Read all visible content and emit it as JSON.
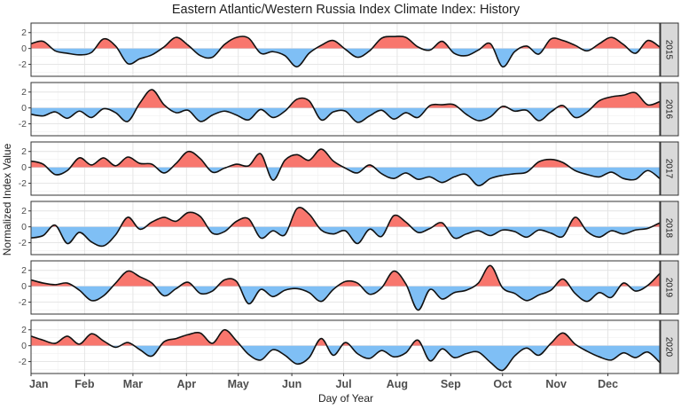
{
  "chart_data": {
    "type": "area",
    "title": "Eastern Atlantic/Western Russia Index Climate Index: History",
    "xlabel": "Day of Year",
    "ylabel": "Normalized Index Value",
    "xlim": [
      1,
      365
    ],
    "ylim": [
      -3.5,
      3.2
    ],
    "yticks": [
      -2,
      0,
      2
    ],
    "x_ticks": [
      {
        "label": "Jan",
        "day": 1
      },
      {
        "label": "Feb",
        "day": 32
      },
      {
        "label": "Mar",
        "day": 60
      },
      {
        "label": "Apr",
        "day": 91
      },
      {
        "label": "May",
        "day": 121
      },
      {
        "label": "Jun",
        "day": 152
      },
      {
        "label": "Jul",
        "day": 182
      },
      {
        "label": "Aug",
        "day": 213
      },
      {
        "label": "Sep",
        "day": 244
      },
      {
        "label": "Oct",
        "day": 274
      },
      {
        "label": "Nov",
        "day": 305
      },
      {
        "label": "Dec",
        "day": 335
      }
    ],
    "grid": true,
    "fill_positive_color": "#f8766d",
    "fill_negative_color": "#7fbff5",
    "line_color": "#111111",
    "panels": [
      {
        "label": "2015",
        "x": [
          1,
          8,
          15,
          22,
          29,
          36,
          43,
          50,
          57,
          64,
          71,
          78,
          85,
          92,
          99,
          106,
          113,
          120,
          127,
          134,
          141,
          148,
          155,
          162,
          169,
          176,
          183,
          190,
          197,
          204,
          211,
          218,
          225,
          232,
          239,
          246,
          253,
          260,
          267,
          274,
          281,
          288,
          295,
          302,
          309,
          316,
          323,
          330,
          337,
          344,
          351,
          358,
          365
        ],
        "y": [
          0.6,
          0.9,
          -0.3,
          -0.6,
          -0.8,
          -0.5,
          1.2,
          0.3,
          -1.9,
          -1.3,
          -0.8,
          0.2,
          1.4,
          0.4,
          -0.9,
          -1.1,
          0.5,
          1.4,
          1.3,
          -0.6,
          -0.4,
          -0.9,
          -2.3,
          -0.6,
          0.4,
          1.0,
          -0.1,
          -1.1,
          -0.3,
          1.3,
          1.5,
          1.4,
          0.2,
          -0.2,
          0.9,
          -0.6,
          -0.9,
          -0.2,
          0.6,
          -2.3,
          -0.4,
          0.3,
          -0.7,
          1.2,
          1.0,
          0.4,
          -0.3,
          0.6,
          1.4,
          0.5,
          -0.6,
          1.0,
          0.2
        ]
      },
      {
        "label": "2016",
        "x": [
          1,
          8,
          15,
          22,
          29,
          36,
          43,
          50,
          57,
          64,
          71,
          78,
          85,
          92,
          99,
          106,
          113,
          120,
          127,
          134,
          141,
          148,
          155,
          162,
          169,
          176,
          183,
          190,
          197,
          204,
          211,
          218,
          225,
          232,
          239,
          246,
          253,
          260,
          267,
          274,
          281,
          288,
          295,
          302,
          309,
          316,
          323,
          330,
          337,
          344,
          351,
          358,
          365
        ],
        "y": [
          -0.8,
          -1.0,
          -0.5,
          -1.3,
          -0.4,
          -1.2,
          -0.1,
          -0.6,
          -1.7,
          0.6,
          2.3,
          0.4,
          -0.6,
          -0.3,
          -1.7,
          -0.9,
          -0.4,
          -0.9,
          -1.5,
          -0.2,
          -1.2,
          -0.4,
          1.1,
          0.9,
          -1.5,
          -0.5,
          -0.4,
          -1.8,
          -1.0,
          -0.3,
          -1.4,
          -0.6,
          -1.2,
          0.3,
          0.4,
          0.4,
          -0.8,
          -1.6,
          -1.1,
          0.2,
          -0.4,
          -0.3,
          -1.6,
          -0.5,
          0.3,
          -1.2,
          -0.5,
          0.9,
          1.4,
          1.6,
          1.9,
          0.4,
          0.8
        ]
      },
      {
        "label": "2017",
        "x": [
          1,
          8,
          15,
          22,
          29,
          36,
          43,
          50,
          57,
          64,
          71,
          78,
          85,
          92,
          99,
          106,
          113,
          120,
          127,
          134,
          141,
          148,
          155,
          162,
          169,
          176,
          183,
          190,
          197,
          204,
          211,
          218,
          225,
          232,
          239,
          246,
          253,
          260,
          267,
          274,
          281,
          288,
          295,
          302,
          309,
          316,
          323,
          330,
          337,
          344,
          351,
          358,
          365
        ],
        "y": [
          0.8,
          0.4,
          -0.9,
          -0.4,
          1.2,
          0.3,
          1.2,
          0.2,
          1.3,
          0.5,
          0.4,
          -0.7,
          0.5,
          2.0,
          1.1,
          -0.6,
          -0.1,
          0.4,
          0.2,
          1.7,
          -1.6,
          0.9,
          1.6,
          0.9,
          2.3,
          0.8,
          -0.1,
          -0.7,
          0.3,
          -0.8,
          -1.4,
          -0.7,
          -1.5,
          -1.2,
          -1.9,
          -1.2,
          -0.9,
          -2.3,
          -1.4,
          -1.0,
          -0.8,
          -0.6,
          0.7,
          1.0,
          0.6,
          -0.4,
          -0.9,
          -1.2,
          -0.6,
          -1.4,
          -1.5,
          -0.4,
          -1.4
        ]
      },
      {
        "label": "2018",
        "x": [
          1,
          8,
          15,
          22,
          29,
          36,
          43,
          50,
          57,
          64,
          71,
          78,
          85,
          92,
          99,
          106,
          113,
          120,
          127,
          134,
          141,
          148,
          155,
          162,
          169,
          176,
          183,
          190,
          197,
          204,
          211,
          218,
          225,
          232,
          239,
          246,
          253,
          260,
          267,
          274,
          281,
          288,
          295,
          302,
          309,
          316,
          323,
          330,
          337,
          344,
          351,
          358,
          365
        ],
        "y": [
          -1.4,
          -1.1,
          0.2,
          -2.1,
          -0.7,
          -1.9,
          -2.4,
          -1.0,
          1.2,
          -0.3,
          0.6,
          1.2,
          0.7,
          1.8,
          1.3,
          -0.8,
          -0.6,
          0.7,
          1.0,
          -1.4,
          -0.5,
          -1.0,
          2.3,
          1.6,
          -0.4,
          -0.9,
          -0.5,
          -2.1,
          -0.3,
          -1.2,
          1.4,
          0.6,
          -0.7,
          -0.2,
          0.5,
          -1.4,
          -0.9,
          -0.5,
          -1.1,
          -0.4,
          -0.6,
          -1.3,
          -0.4,
          -0.8,
          -1.2,
          1.2,
          -0.6,
          -1.3,
          -0.5,
          -0.9,
          -0.4,
          -0.2,
          0.5
        ]
      },
      {
        "label": "2019",
        "x": [
          1,
          8,
          15,
          22,
          29,
          36,
          43,
          50,
          57,
          64,
          71,
          78,
          85,
          92,
          99,
          106,
          113,
          120,
          127,
          134,
          141,
          148,
          155,
          162,
          169,
          176,
          183,
          190,
          197,
          204,
          211,
          218,
          225,
          232,
          239,
          246,
          253,
          260,
          267,
          274,
          281,
          288,
          295,
          302,
          309,
          316,
          323,
          330,
          337,
          344,
          351,
          358,
          365
        ],
        "y": [
          0.8,
          0.4,
          0.2,
          0.4,
          -0.5,
          -1.8,
          -1.2,
          0.4,
          1.9,
          1.2,
          0.4,
          -1.2,
          -0.3,
          0.5,
          -0.9,
          -0.6,
          0.8,
          0.6,
          -2.2,
          -0.4,
          -1.3,
          -0.5,
          -0.3,
          -0.8,
          -1.9,
          -0.4,
          0.6,
          0.4,
          -1.0,
          -0.2,
          1.9,
          0.3,
          -3.0,
          -0.4,
          -1.6,
          -0.8,
          -0.5,
          0.4,
          2.6,
          -0.2,
          -0.9,
          -1.8,
          -1.1,
          -0.5,
          0.9,
          -0.9,
          -1.9,
          -0.8,
          -1.4,
          0.4,
          -0.6,
          0.1,
          1.6
        ]
      },
      {
        "label": "2020",
        "x": [
          1,
          8,
          15,
          22,
          29,
          36,
          43,
          50,
          57,
          64,
          71,
          78,
          85,
          92,
          99,
          106,
          113,
          120,
          127,
          134,
          141,
          148,
          155,
          162,
          169,
          176,
          183,
          190,
          197,
          204,
          211,
          218,
          225,
          232,
          239,
          246,
          253,
          260,
          267,
          274,
          281,
          288,
          295,
          302,
          309,
          316,
          323,
          330,
          337,
          344,
          351,
          358,
          365
        ],
        "y": [
          1.2,
          0.7,
          0.3,
          1.2,
          0.2,
          1.5,
          0.6,
          -0.2,
          0.4,
          -0.5,
          -1.3,
          0.5,
          0.9,
          1.4,
          1.6,
          0.3,
          2.0,
          0.6,
          -1.1,
          -1.8,
          -0.5,
          -1.2,
          -2.3,
          -1.5,
          0.9,
          -1.2,
          0.4,
          -1.0,
          -1.6,
          -0.6,
          -1.4,
          -0.9,
          0.7,
          -1.9,
          -0.4,
          -1.5,
          -1.0,
          -0.8,
          -2.1,
          -3.1,
          -1.3,
          -0.3,
          -1.2,
          0.3,
          1.6,
          0.2,
          -0.7,
          -1.4,
          -1.8,
          -0.9,
          -1.5,
          -0.8,
          -2.1
        ]
      }
    ]
  }
}
